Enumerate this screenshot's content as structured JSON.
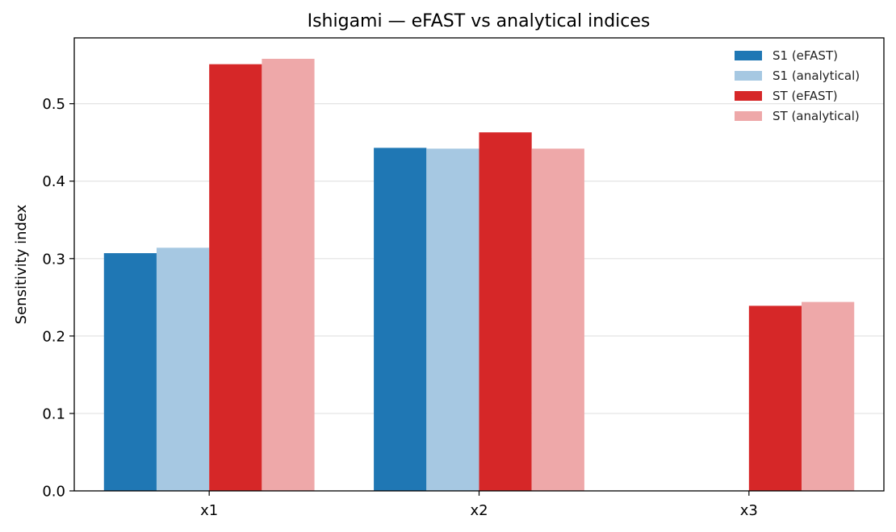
{
  "chart_data": {
    "type": "bar",
    "title": "Ishigami — eFAST vs analytical indices",
    "xlabel": "",
    "ylabel": "Sensitivity index",
    "categories": [
      "x1",
      "x2",
      "x3"
    ],
    "ylim": [
      0,
      0.585
    ],
    "yticks": [
      0.0,
      0.1,
      0.2,
      0.3,
      0.4,
      0.5
    ],
    "ytick_labels": [
      "0.0",
      "0.1",
      "0.2",
      "0.3",
      "0.4",
      "0.5"
    ],
    "grid": "horizontal",
    "legend_position": "top-right",
    "series": [
      {
        "name": "S1 (eFAST)",
        "color": "#1f77b4",
        "values": [
          0.307,
          0.443,
          0.0
        ]
      },
      {
        "name": "S1 (analytical)",
        "color": "#a6c8e2",
        "values": [
          0.314,
          0.442,
          0.0
        ]
      },
      {
        "name": "ST (eFAST)",
        "color": "#d62728",
        "values": [
          0.551,
          0.463,
          0.239
        ]
      },
      {
        "name": "ST (analytical)",
        "color": "#eea8a9",
        "values": [
          0.558,
          0.442,
          0.244
        ]
      }
    ]
  }
}
